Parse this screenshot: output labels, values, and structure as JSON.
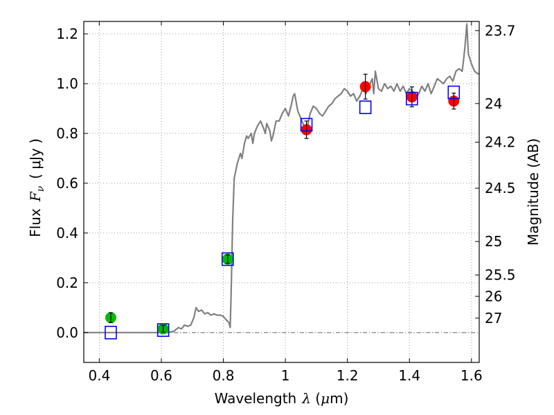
{
  "chart_data": {
    "type": "scatter",
    "xlabel_prefix": "Wavelength",
    "xlabel_math": "λ",
    "xlabel_unit_open": " (",
    "xlabel_unit_mu": "μ",
    "xlabel_unit_rest": "m)",
    "ylabel_prefix": "Flux",
    "ylabel_math": "F",
    "ylabel_sub": "ν",
    "ylabel_unit": "( μJy )",
    "y2label": "Magnitude (AB)",
    "xlim": [
      0.35,
      1.625
    ],
    "ylim": [
      -0.12,
      1.25
    ],
    "grid": true,
    "x_ticks": [
      0.4,
      0.6,
      0.8,
      1.0,
      1.2,
      1.4,
      1.6
    ],
    "x_tick_labels": [
      "0.4",
      "0.6",
      "0.8",
      "1",
      "1.2",
      "1.4",
      "1.6"
    ],
    "y_ticks": [
      0.0,
      0.2,
      0.4,
      0.6,
      0.8,
      1.0,
      1.2
    ],
    "y_tick_labels": [
      "0.0",
      "0.2",
      "0.4",
      "0.6",
      "0.8",
      "1.0",
      "1.2"
    ],
    "y2_ticks": [
      {
        "label": "23.7",
        "flux": 1.213
      },
      {
        "label": "24",
        "flux": 0.92
      },
      {
        "label": "24.2",
        "flux": 0.765
      },
      {
        "label": "24.5",
        "flux": 0.58
      },
      {
        "label": "25",
        "flux": 0.366
      },
      {
        "label": "25.5",
        "flux": 0.231
      },
      {
        "label": "26",
        "flux": 0.146
      },
      {
        "label": "27",
        "flux": 0.058
      }
    ],
    "colors": {
      "spectrum": "#808080",
      "green": "#00bb00",
      "red": "#ff0000",
      "model_box": "#0000ff",
      "grid": "#999999"
    },
    "series": [
      {
        "style": "line",
        "points": [
          [
            0.35,
            0.0
          ],
          [
            0.5,
            0.0
          ],
          [
            0.62,
            0.0
          ],
          [
            0.64,
            0.005
          ],
          [
            0.655,
            0.02
          ],
          [
            0.665,
            0.015
          ],
          [
            0.675,
            0.03
          ],
          [
            0.685,
            0.025
          ],
          [
            0.695,
            0.03
          ],
          [
            0.705,
            0.06
          ],
          [
            0.712,
            0.1
          ],
          [
            0.72,
            0.085
          ],
          [
            0.73,
            0.09
          ],
          [
            0.74,
            0.075
          ],
          [
            0.75,
            0.08
          ],
          [
            0.76,
            0.07
          ],
          [
            0.77,
            0.075
          ],
          [
            0.78,
            0.07
          ],
          [
            0.79,
            0.07
          ],
          [
            0.8,
            0.065
          ],
          [
            0.81,
            0.05
          ],
          [
            0.818,
            0.04
          ],
          [
            0.822,
            0.02
          ],
          [
            0.825,
            0.15
          ],
          [
            0.83,
            0.45
          ],
          [
            0.835,
            0.62
          ],
          [
            0.845,
            0.68
          ],
          [
            0.855,
            0.72
          ],
          [
            0.86,
            0.7
          ],
          [
            0.868,
            0.76
          ],
          [
            0.875,
            0.79
          ],
          [
            0.88,
            0.78
          ],
          [
            0.89,
            0.8
          ],
          [
            0.895,
            0.76
          ],
          [
            0.9,
            0.8
          ],
          [
            0.91,
            0.83
          ],
          [
            0.92,
            0.85
          ],
          [
            0.93,
            0.82
          ],
          [
            0.935,
            0.8
          ],
          [
            0.94,
            0.84
          ],
          [
            0.95,
            0.81
          ],
          [
            0.955,
            0.77
          ],
          [
            0.96,
            0.79
          ],
          [
            0.97,
            0.85
          ],
          [
            0.98,
            0.85
          ],
          [
            0.99,
            0.88
          ],
          [
            1.0,
            0.9
          ],
          [
            1.01,
            0.87
          ],
          [
            1.02,
            0.92
          ],
          [
            1.025,
            0.95
          ],
          [
            1.03,
            0.96
          ],
          [
            1.04,
            0.89
          ],
          [
            1.05,
            0.86
          ],
          [
            1.06,
            0.83
          ],
          [
            1.07,
            0.82
          ],
          [
            1.08,
            0.88
          ],
          [
            1.09,
            0.91
          ],
          [
            1.1,
            0.9
          ],
          [
            1.11,
            0.88
          ],
          [
            1.12,
            0.87
          ],
          [
            1.13,
            0.89
          ],
          [
            1.14,
            0.91
          ],
          [
            1.15,
            0.92
          ],
          [
            1.16,
            0.94
          ],
          [
            1.17,
            0.95
          ],
          [
            1.18,
            0.96
          ],
          [
            1.19,
            0.98
          ],
          [
            1.2,
            0.97
          ],
          [
            1.21,
            0.95
          ],
          [
            1.22,
            0.96
          ],
          [
            1.23,
            0.93
          ],
          [
            1.24,
            0.95
          ],
          [
            1.25,
            0.98
          ],
          [
            1.26,
            0.96
          ],
          [
            1.27,
            0.99
          ],
          [
            1.28,
            1.02
          ],
          [
            1.285,
            0.96
          ],
          [
            1.29,
            1.05
          ],
          [
            1.3,
            0.98
          ],
          [
            1.31,
            0.97
          ],
          [
            1.32,
            1.0
          ],
          [
            1.33,
            0.98
          ],
          [
            1.34,
            0.99
          ],
          [
            1.35,
            0.97
          ],
          [
            1.36,
            1.0
          ],
          [
            1.37,
            0.97
          ],
          [
            1.38,
            0.99
          ],
          [
            1.39,
            0.96
          ],
          [
            1.4,
            0.98
          ],
          [
            1.41,
            0.97
          ],
          [
            1.42,
            0.94
          ],
          [
            1.43,
            0.96
          ],
          [
            1.44,
            0.99
          ],
          [
            1.45,
            0.97
          ],
          [
            1.46,
            1.0
          ],
          [
            1.47,
            0.96
          ],
          [
            1.48,
            0.99
          ],
          [
            1.49,
            1.02
          ],
          [
            1.5,
            1.01
          ],
          [
            1.51,
            1.0
          ],
          [
            1.52,
            1.02
          ],
          [
            1.53,
            1.03
          ],
          [
            1.54,
            1.01
          ],
          [
            1.55,
            1.05
          ],
          [
            1.56,
            1.06
          ],
          [
            1.57,
            1.05
          ],
          [
            1.575,
            1.1
          ],
          [
            1.58,
            1.16
          ],
          [
            1.585,
            1.24
          ],
          [
            1.59,
            1.12
          ],
          [
            1.6,
            1.08
          ],
          [
            1.61,
            1.05
          ],
          [
            1.62,
            1.04
          ],
          [
            1.625,
            1.04
          ]
        ]
      },
      {
        "style": "circle-errorbar",
        "color_key": "green",
        "points": [
          {
            "x": 0.437,
            "y": 0.06,
            "err": 0.02
          },
          {
            "x": 0.606,
            "y": 0.015,
            "err": 0.013
          },
          {
            "x": 0.814,
            "y": 0.295,
            "err": 0.017
          }
        ]
      },
      {
        "style": "circle-errorbar",
        "color_key": "red",
        "points": [
          {
            "x": 1.068,
            "y": 0.815,
            "err": 0.035
          },
          {
            "x": 1.258,
            "y": 0.988,
            "err": 0.05
          },
          {
            "x": 1.408,
            "y": 0.947,
            "err": 0.04
          },
          {
            "x": 1.543,
            "y": 0.93,
            "err": 0.032
          }
        ]
      },
      {
        "style": "open-square",
        "color_key": "model_box",
        "points": [
          {
            "x": 0.437,
            "y": 0.0
          },
          {
            "x": 0.606,
            "y": 0.01
          },
          {
            "x": 0.814,
            "y": 0.295
          },
          {
            "x": 1.068,
            "y": 0.835
          },
          {
            "x": 1.258,
            "y": 0.905
          },
          {
            "x": 1.408,
            "y": 0.94
          },
          {
            "x": 1.543,
            "y": 0.965
          }
        ]
      }
    ]
  }
}
